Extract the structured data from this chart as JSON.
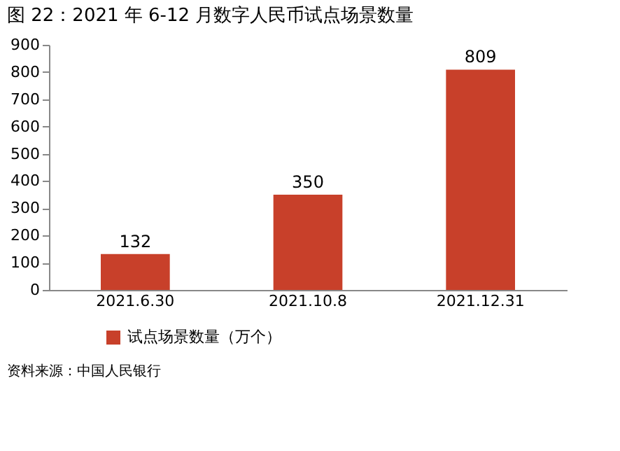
{
  "chart_data": {
    "type": "bar",
    "title": "图 22：2021 年 6-12 月数字人民币试点场景数量",
    "categories": [
      "2021.6.30",
      "2021.10.8",
      "2021.12.31"
    ],
    "series": [
      {
        "name": "试点场景数量（万个）",
        "color": "#c8402a",
        "values": [
          132,
          350,
          809
        ]
      }
    ],
    "ylim": [
      0,
      900
    ],
    "yticks": [
      0,
      100,
      200,
      300,
      400,
      500,
      600,
      700,
      800,
      900
    ],
    "data_labels": true,
    "grid": false,
    "legend": "bottom",
    "annotations": [
      "资料来源：中国人民银行"
    ]
  }
}
